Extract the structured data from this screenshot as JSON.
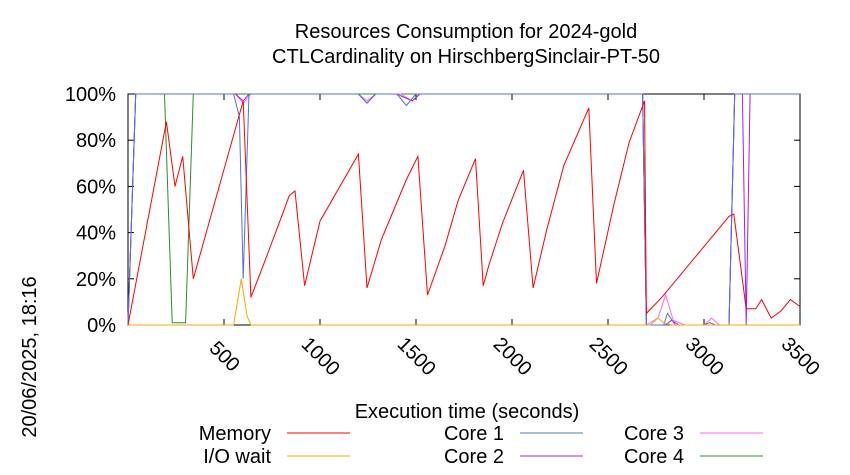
{
  "chart_data": {
    "type": "line",
    "title": "Resources Consumption for 2024-gold",
    "subtitle": "CTLCardinality on HirschbergSinclair-PT-50",
    "xlabel": "Execution time (seconds)",
    "ylabel": "",
    "side_label": "20/06/2025, 18:16",
    "xlim": [
      0,
      3500
    ],
    "ylim": [
      0,
      100
    ],
    "x_ticks": [
      500,
      1000,
      1500,
      2000,
      2500,
      3000,
      3500
    ],
    "x_tick_labels": [
      "500",
      "1000",
      "1500",
      "2000",
      "2500",
      "3000",
      "3500"
    ],
    "y_ticks": [
      0,
      20,
      40,
      60,
      80,
      100
    ],
    "y_tick_labels": [
      "0%",
      "20%",
      "40%",
      "60%",
      "80%",
      "100%"
    ],
    "grid": false,
    "legend_position": "bottom",
    "series": [
      {
        "name": "Memory",
        "color": "#ff0000",
        "points": [
          [
            0,
            0
          ],
          [
            200,
            88
          ],
          [
            245,
            60
          ],
          [
            285,
            73
          ],
          [
            340,
            20
          ],
          [
            600,
            97
          ],
          [
            640,
            12
          ],
          [
            710,
            27
          ],
          [
            800,
            47
          ],
          [
            840,
            56
          ],
          [
            870,
            58
          ],
          [
            920,
            17
          ],
          [
            1000,
            45
          ],
          [
            1200,
            74
          ],
          [
            1245,
            16
          ],
          [
            1320,
            37
          ],
          [
            1450,
            63
          ],
          [
            1510,
            73
          ],
          [
            1560,
            13
          ],
          [
            1650,
            34
          ],
          [
            1720,
            54
          ],
          [
            1810,
            72
          ],
          [
            1850,
            17
          ],
          [
            1880,
            26
          ],
          [
            1950,
            44
          ],
          [
            2060,
            67
          ],
          [
            2110,
            16
          ],
          [
            2180,
            41
          ],
          [
            2270,
            69
          ],
          [
            2400,
            94
          ],
          [
            2440,
            18
          ],
          [
            2530,
            52
          ],
          [
            2610,
            79
          ],
          [
            2690,
            97
          ],
          [
            2700,
            5
          ],
          [
            2780,
            12
          ],
          [
            2890,
            23
          ],
          [
            3130,
            47
          ],
          [
            3155,
            48
          ],
          [
            3220,
            7
          ],
          [
            3270,
            7
          ],
          [
            3300,
            11
          ],
          [
            3350,
            3
          ],
          [
            3400,
            6
          ],
          [
            3450,
            11
          ],
          [
            3500,
            8
          ]
        ]
      },
      {
        "name": "I/O wait",
        "color": "#ffa500",
        "points": [
          [
            0,
            0
          ],
          [
            550,
            0
          ],
          [
            590,
            20
          ],
          [
            620,
            4
          ],
          [
            640,
            0
          ],
          [
            2720,
            0
          ],
          [
            2760,
            3
          ],
          [
            2790,
            1
          ],
          [
            2830,
            0
          ],
          [
            3500,
            0
          ]
        ]
      },
      {
        "name": "Core 1",
        "color": "#4f75d0",
        "points": [
          [
            0,
            0
          ],
          [
            40,
            100
          ],
          [
            550,
            100
          ],
          [
            580,
            90
          ],
          [
            600,
            20
          ],
          [
            630,
            100
          ],
          [
            700,
            100
          ],
          [
            1200,
            100
          ],
          [
            1245,
            96
          ],
          [
            1290,
            100
          ],
          [
            1400,
            100
          ],
          [
            1450,
            95
          ],
          [
            1500,
            100
          ],
          [
            2680,
            100
          ],
          [
            2700,
            0
          ],
          [
            2790,
            0
          ],
          [
            2810,
            5
          ],
          [
            2850,
            0
          ],
          [
            3000,
            0
          ],
          [
            3030,
            1
          ],
          [
            3060,
            0
          ],
          [
            3130,
            0
          ],
          [
            3160,
            100
          ],
          [
            3500,
            100
          ]
        ]
      },
      {
        "name": "Core 2",
        "color": "#a020f0",
        "points": [
          [
            0,
            0
          ],
          [
            40,
            100
          ],
          [
            560,
            100
          ],
          [
            600,
            97
          ],
          [
            630,
            100
          ],
          [
            1200,
            100
          ],
          [
            1245,
            96
          ],
          [
            1290,
            100
          ],
          [
            1400,
            100
          ],
          [
            1480,
            97
          ],
          [
            1520,
            100
          ],
          [
            2680,
            100
          ],
          [
            2700,
            0
          ],
          [
            2800,
            0
          ],
          [
            2830,
            2
          ],
          [
            2870,
            0
          ],
          [
            3130,
            0
          ],
          [
            3160,
            100
          ],
          [
            3200,
            100
          ],
          [
            3220,
            0
          ],
          [
            3240,
            100
          ],
          [
            3500,
            100
          ]
        ]
      },
      {
        "name": "Core 3",
        "color": "#ff66ff",
        "points": [
          [
            0,
            0
          ],
          [
            40,
            100
          ],
          [
            560,
            100
          ],
          [
            600,
            96
          ],
          [
            640,
            100
          ],
          [
            1200,
            100
          ],
          [
            1245,
            97
          ],
          [
            1290,
            100
          ],
          [
            1420,
            100
          ],
          [
            1480,
            97
          ],
          [
            1520,
            100
          ],
          [
            2680,
            100
          ],
          [
            2700,
            0
          ],
          [
            2760,
            3
          ],
          [
            2800,
            13
          ],
          [
            2840,
            2
          ],
          [
            2900,
            0
          ],
          [
            3000,
            0
          ],
          [
            3040,
            3
          ],
          [
            3080,
            0
          ],
          [
            3130,
            0
          ],
          [
            3160,
            100
          ],
          [
            3500,
            100
          ]
        ]
      },
      {
        "name": "Core 4",
        "color": "#2e8b2e",
        "points": [
          [
            0,
            0
          ],
          [
            40,
            100
          ],
          [
            190,
            100
          ],
          [
            230,
            1
          ],
          [
            300,
            1
          ],
          [
            340,
            100
          ],
          [
            2680,
            100
          ],
          [
            2700,
            0
          ],
          [
            3130,
            0
          ],
          [
            3160,
            100
          ],
          [
            3500,
            100
          ]
        ]
      }
    ]
  }
}
